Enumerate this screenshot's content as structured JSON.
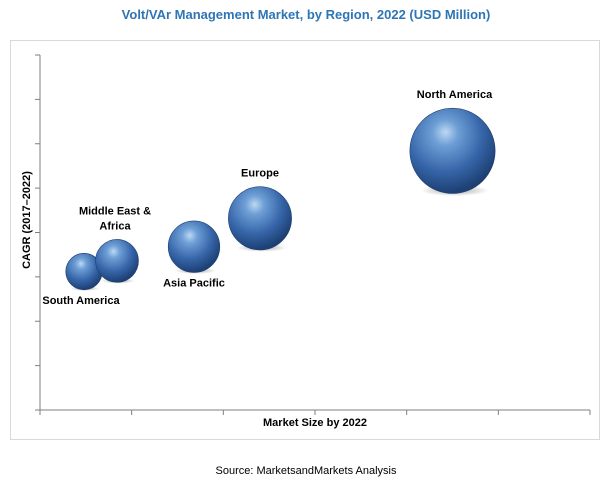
{
  "chart_data": {
    "type": "scatter",
    "title": "Volt/VAr Management Market, by Region, 2022 (USD Million)",
    "xlabel": "Market Size by 2022",
    "ylabel": "CAGR (2017–2022)",
    "xlim": [
      0,
      100
    ],
    "ylim": [
      0,
      100
    ],
    "x_ticks": 6,
    "y_ticks": 8,
    "grid": false,
    "legend": "none",
    "bubble_color": "#3a6fb0",
    "series": [
      {
        "points": [
          {
            "label": "South America",
            "label_lines": [
              "South America"
            ],
            "label_pos": "below",
            "x": 8,
            "y": 39,
            "size": 1.3
          },
          {
            "label": "Middle East & Africa",
            "label_lines": [
              "Middle East &",
              "Africa"
            ],
            "label_pos": "above",
            "x": 14,
            "y": 42,
            "size": 1.8
          },
          {
            "label": "Asia Pacific",
            "label_lines": [
              "Asia Pacific"
            ],
            "label_pos": "below",
            "x": 28,
            "y": 46,
            "size": 2.6
          },
          {
            "label": "Europe",
            "label_lines": [
              "Europe"
            ],
            "label_pos": "above",
            "x": 40,
            "y": 54,
            "size": 3.9
          },
          {
            "label": "North America",
            "label_lines": [
              "North America"
            ],
            "label_pos": "above",
            "x": 75,
            "y": 73,
            "size": 7.1
          }
        ]
      }
    ]
  },
  "source": "Source: MarketsandMarkets Analysis"
}
